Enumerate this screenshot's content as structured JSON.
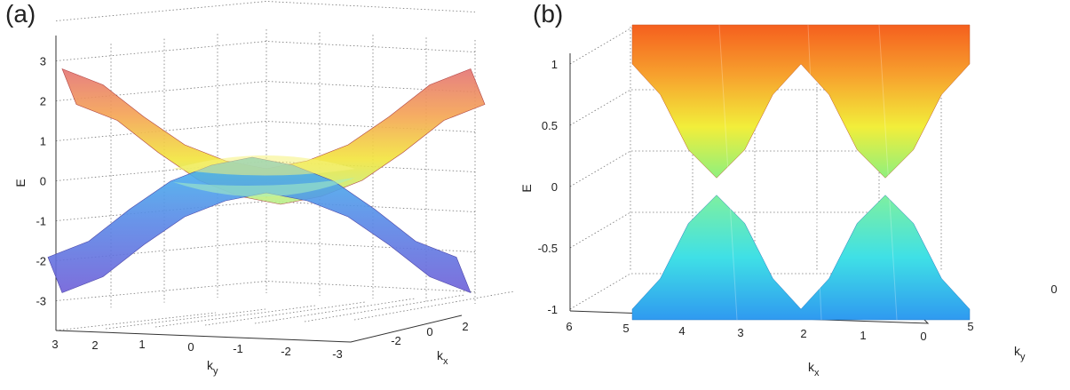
{
  "chart_data": [
    {
      "type": "surface3d",
      "panel_label": "(a)",
      "zlabel": "E",
      "xlabel": "k_x",
      "ylabel": "k_y",
      "z_ticks": [
        "3",
        "2",
        "1",
        "0",
        "-1",
        "-2",
        "-3"
      ],
      "y_ticks": [
        "3",
        "2",
        "1",
        "0",
        "-1",
        "-2",
        "-3"
      ],
      "x_ticks": [
        "-2",
        "0",
        "2"
      ],
      "zlim": [
        -3.3,
        3.3
      ],
      "ylim": [
        -3.14,
        3.14
      ],
      "xlim": [
        -3.14,
        3.14
      ],
      "colormap": [
        "#6a5fe0",
        "#3fb0ee",
        "#a6ef8e",
        "#f2e83a",
        "#f6a140",
        "#ee7a7a"
      ],
      "series": [
        {
          "values": [
            -2.8,
            -2.4,
            -1.6,
            -0.9,
            -0.5,
            -0.3,
            -0.5,
            -0.9,
            -1.6,
            -2.4,
            -2.8
          ]
        },
        {
          "values": [
            2.8,
            2.4,
            1.6,
            0.9,
            0.5,
            0.3,
            0.5,
            0.9,
            1.6,
            2.4,
            2.8
          ]
        }
      ]
    },
    {
      "type": "surface3d",
      "panel_label": "(b)",
      "zlabel": "E",
      "xlabel": "k_x",
      "ylabel": "k_y",
      "z_ticks": [
        "1",
        "0.5",
        "0",
        "-0.5",
        "-1"
      ],
      "x_ticks": [
        "6",
        "5",
        "4",
        "3",
        "2",
        "1",
        "0"
      ],
      "y_ticks": [
        "0",
        "5"
      ],
      "zlim": [
        -1,
        1
      ],
      "xlim": [
        0,
        6.28
      ],
      "colormap": [
        "#2f7bf0",
        "#3fe0e6",
        "#7ef0a0",
        "#f2ee3a",
        "#f7a22e",
        "#f55f1e"
      ],
      "series": [
        {
          "values": [
            -1.0,
            -0.75,
            -0.3,
            -0.07,
            -0.3,
            -0.75,
            -1.0,
            -0.75,
            -0.3,
            -0.07,
            -0.3,
            -0.75,
            -1.0
          ]
        },
        {
          "values": [
            1.0,
            0.75,
            0.3,
            0.07,
            0.3,
            0.75,
            1.0,
            0.75,
            0.3,
            0.07,
            0.3,
            0.75,
            1.0
          ]
        }
      ]
    }
  ]
}
